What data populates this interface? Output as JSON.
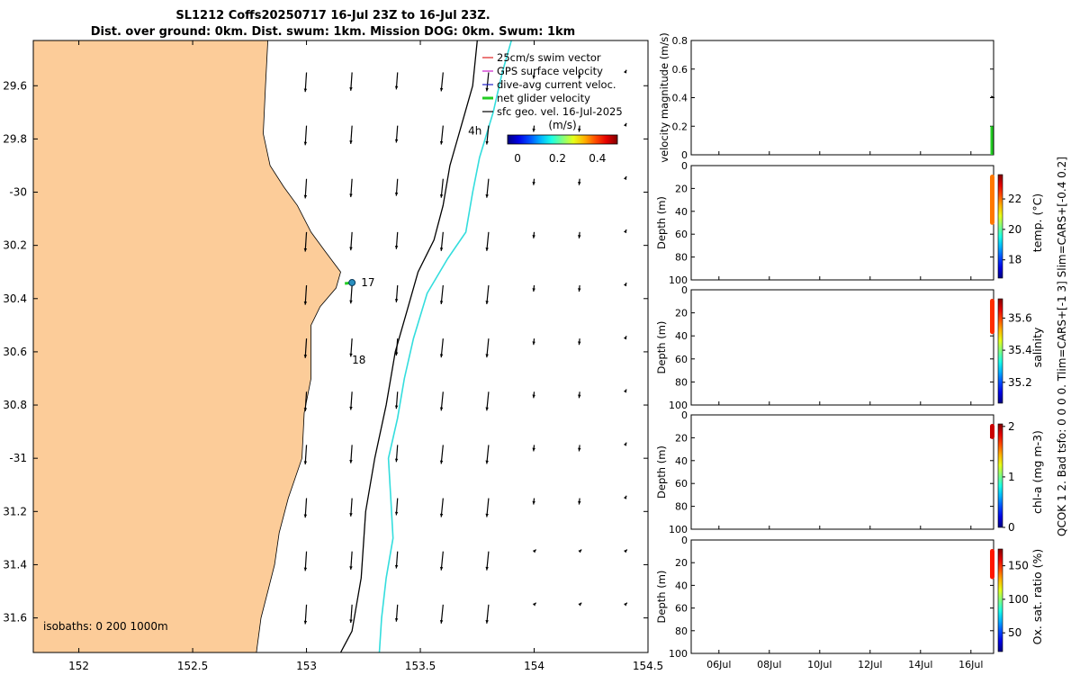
{
  "title": {
    "line1": "SL1212 Coffs20250717 16-Jul 23Z to 16-Jul 23Z.",
    "line2": "Dist. over ground: 0km. Dist. swum: 1km. Mission DOG: 0km. Swum: 1km"
  },
  "colors": {
    "land": "#fccc99",
    "isobath_200": "#000000",
    "isobath_1000": "#33dddd",
    "vector": "#000000",
    "glider_track": "#22cc22"
  },
  "chart_data": [
    {
      "type": "scatter",
      "name": "map",
      "x_ticks": [
        152,
        152.5,
        153,
        153.5,
        154,
        154.5
      ],
      "y_ticks": [
        -29.6,
        -29.8,
        -30,
        -30.2,
        -30.4,
        -30.6,
        -30.8,
        -31,
        -31.2,
        -31.4,
        -31.6
      ],
      "y_tick_labels": [
        "29.6",
        "29.8",
        "-30",
        "30.2",
        "30.4",
        "30.6",
        "30.8",
        "-31",
        "31.2",
        "31.4",
        "31.6"
      ],
      "xlim": [
        151.8,
        154.5
      ],
      "ylim": [
        -31.73,
        -29.43
      ],
      "legend": {
        "placement": "top-right",
        "entries": [
          {
            "label": "25cm/s swim vector",
            "color": "#dd2222"
          },
          {
            "label": "GPS surface velocity",
            "color": "#cc22cc"
          },
          {
            "label": "dive-avg current veloc.",
            "color": "#2222cc"
          },
          {
            "label": "net glider velocity",
            "color": "#22cc22"
          },
          {
            "label": "sfc geo. vel. 16-Jul-2025",
            "color": "#000000"
          }
        ]
      },
      "colorbar": {
        "label": "(m/s)",
        "ticks": [
          0,
          0.2,
          0.4
        ],
        "range": [
          -0.05,
          0.5
        ]
      },
      "isobath_label": "isobaths: 0   200  1000m",
      "day_labels": [
        {
          "text": "17",
          "lon": 153.24,
          "lat": -30.34
        },
        {
          "text": "18",
          "lon": 153.2,
          "lat": -30.63
        }
      ],
      "hour_label": {
        "text": "4h",
        "lon": 153.74,
        "lat": -29.77
      },
      "glider_position": {
        "lon": 153.2,
        "lat": -30.34
      }
    },
    {
      "type": "line",
      "name": "velocity",
      "ylabel": "velocity magnitude (m/s)",
      "ylim": [
        0,
        0.8
      ],
      "y_ticks": [
        0,
        0.2,
        0.4,
        0.6,
        0.8
      ],
      "y_tick_labels": [
        "0",
        "0.2",
        "0.4",
        "0.6",
        "0.8"
      ]
    },
    {
      "type": "scatter",
      "name": "temperature",
      "ylabel": "Depth (m)",
      "colorbar_label": "temp. (°C)",
      "cb_ticks": [
        18,
        20,
        22
      ],
      "cb_range": [
        16.8,
        23.6
      ],
      "cb_fill": [
        20.3,
        23.6
      ]
    },
    {
      "type": "scatter",
      "name": "salinity",
      "ylabel": "Depth (m)",
      "colorbar_label": "salinity",
      "cb_ticks": [
        35.2,
        35.4,
        35.6
      ],
      "cb_ticks_labels": [
        "35.2",
        "35.4",
        "35.6"
      ],
      "cb_range": [
        35.07,
        35.72
      ],
      "cb_fill": [
        35.5,
        35.72
      ]
    },
    {
      "type": "scatter",
      "name": "chlorophyll",
      "ylabel": "Depth (m)",
      "colorbar_label": "chl-a (mg m-3)",
      "cb_ticks": [
        0,
        1,
        2
      ],
      "cb_range": [
        0,
        2.05
      ],
      "cb_fill": [
        1.75,
        2.05
      ]
    },
    {
      "type": "scatter",
      "name": "oxygen",
      "ylabel": "Depth (m)",
      "colorbar_label": "Ox. sat. ratio (%)",
      "cb_ticks": [
        50,
        100,
        150
      ],
      "cb_range": [
        22,
        175
      ],
      "cb_fill": [
        130,
        175
      ],
      "x_tick_labels": [
        "06Jul",
        "08Jul",
        "10Jul",
        "12Jul",
        "14Jul",
        "16Jul"
      ],
      "x_ticks_day": [
        6,
        8,
        10,
        12,
        14,
        16
      ],
      "xlim_day": [
        4.9,
        16.9
      ]
    }
  ],
  "depth_axis": {
    "ticks": [
      0,
      20,
      40,
      60,
      80,
      100
    ],
    "ylim": [
      0,
      100
    ]
  },
  "side_note": "QCOK 1  2. Bad tsfo: 0  0  0  0. Tlim=CARS+[-1 3] Slim=CARS+[-0.4 0.2]"
}
